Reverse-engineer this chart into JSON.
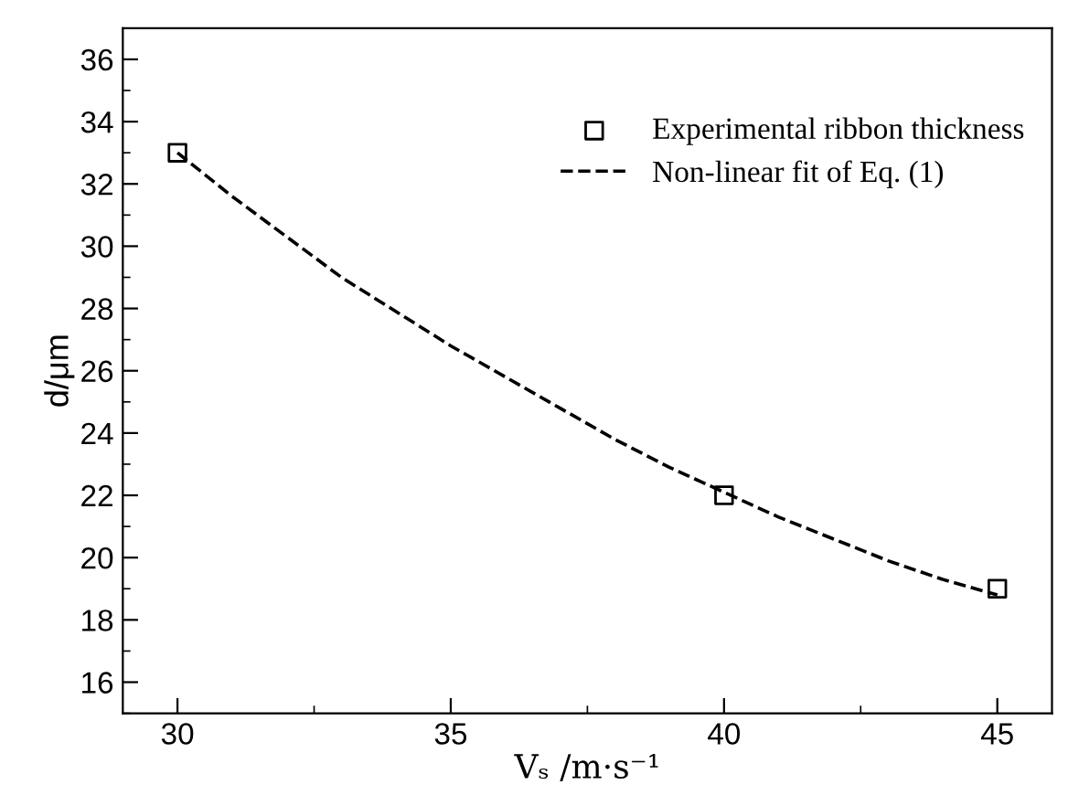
{
  "chart_data": {
    "type": "scatter",
    "xlabel": "Vₛ /m·s⁻¹",
    "ylabel": "d/μm",
    "xlim": [
      29,
      46
    ],
    "xticks": [
      30,
      35,
      40,
      45
    ],
    "ylim": [
      15,
      37
    ],
    "yticks": [
      16,
      18,
      20,
      22,
      24,
      26,
      28,
      30,
      32,
      34,
      36
    ],
    "grid": false,
    "legend": "top right",
    "series": [
      {
        "name": "Experimental ribbon thickness",
        "marker": "square",
        "color": "#000000",
        "x": [
          30,
          40,
          45
        ],
        "values": [
          33,
          22,
          19
        ]
      },
      {
        "name": "Non-linear fit of Eq. (1)",
        "type": "line",
        "marker": "none",
        "line_style": "dashed",
        "color": "#000000",
        "x": [
          30,
          31,
          32,
          33,
          34,
          35,
          36,
          37,
          38,
          39,
          40,
          41,
          42,
          43,
          44,
          45
        ],
        "values": [
          33.0,
          31.6,
          30.3,
          29.0,
          27.9,
          26.8,
          25.8,
          24.8,
          23.8,
          22.9,
          22.1,
          21.3,
          20.6,
          19.9,
          19.3,
          18.8
        ]
      }
    ]
  }
}
